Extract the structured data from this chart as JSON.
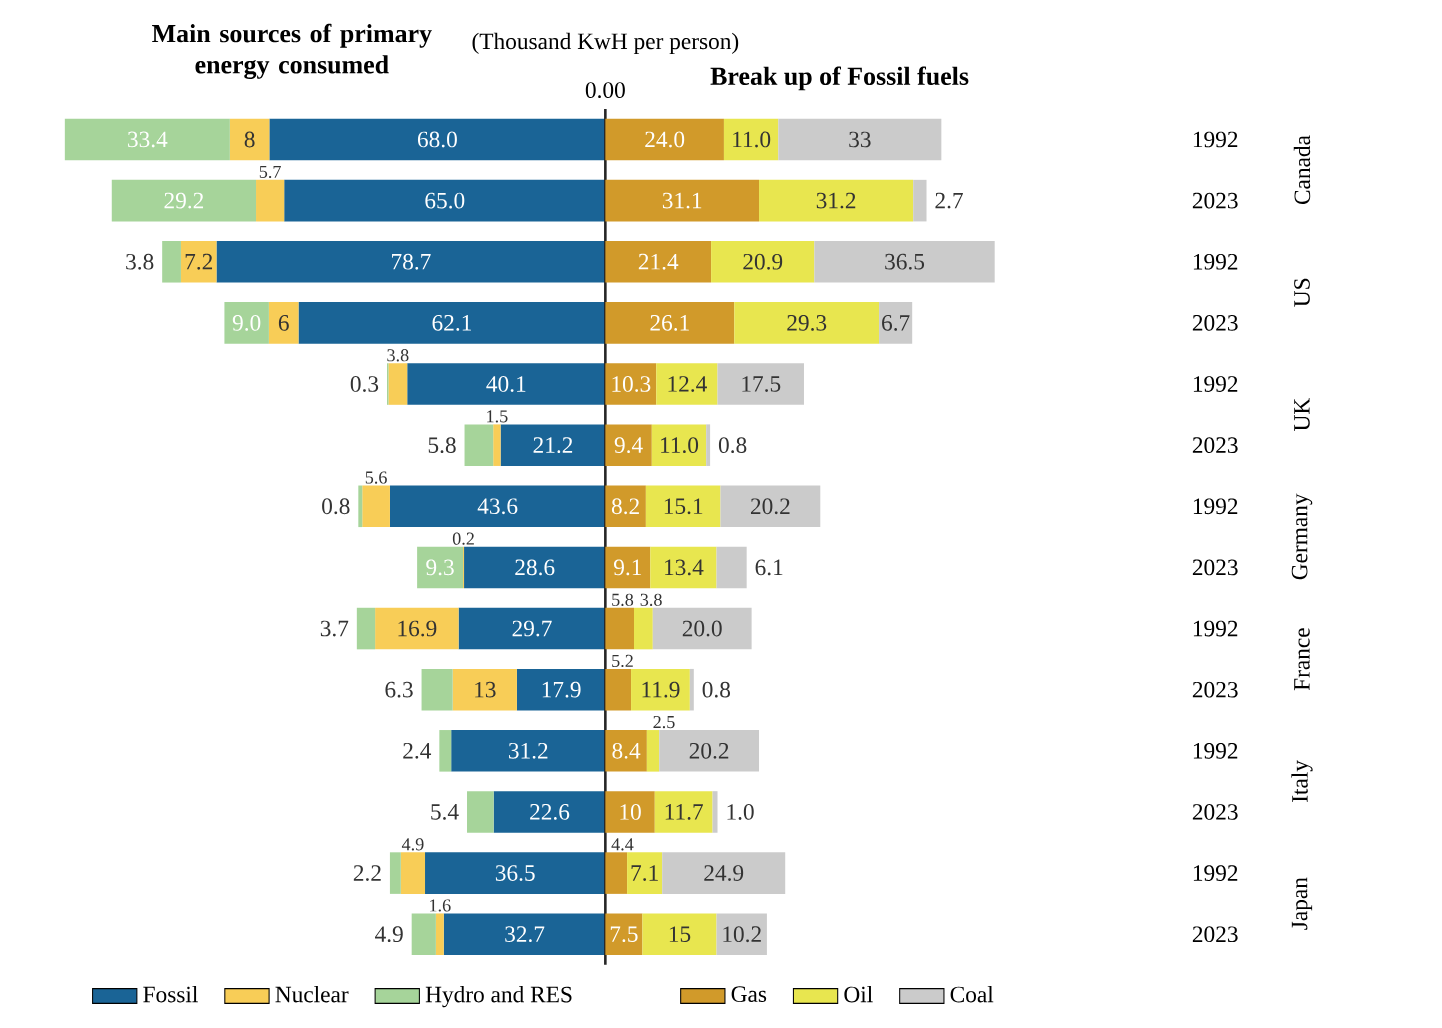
{
  "chart_data": [
    {
      "type": "bar",
      "orientation": "horizontal",
      "stacked": true,
      "title": "Main sources of primary energy consumed",
      "subtitle": "(Thousand KwH per person)",
      "categories": [
        "1992",
        "2023",
        "1992",
        "2023",
        "1992",
        "2023",
        "1992",
        "2023",
        "1992",
        "2023",
        "1992",
        "2023",
        "1992",
        "2023"
      ],
      "xlim": [
        109.4,
        0
      ],
      "annotations": [
        "0.00"
      ],
      "tick_labels": "x",
      "legend": "bottom",
      "series": [
        {
          "name": "Fossil",
          "color": "#1a6496",
          "values": [
            68.0,
            65.0,
            78.7,
            62.1,
            40.1,
            21.2,
            43.6,
            28.6,
            29.7,
            17.9,
            31.2,
            22.6,
            36.5,
            32.7
          ],
          "value_labels": [
            "68.0",
            "65.0",
            "78.7",
            "62.1",
            "40.1",
            "21.2",
            "43.6",
            "28.6",
            "29.7",
            "17.9",
            "31.2",
            "22.6",
            "36.5",
            "32.7"
          ]
        },
        {
          "name": "Nuclear",
          "color": "#f8cd57",
          "values": [
            8,
            5.7,
            7.2,
            6,
            3.8,
            1.5,
            5.6,
            0.2,
            16.9,
            13,
            null,
            null,
            4.9,
            1.6
          ],
          "value_labels": [
            "8",
            "5.7",
            "7.2",
            "6",
            "3.8",
            "1.5",
            "5.6",
            "0.2",
            "16.9",
            "13",
            null,
            null,
            "4.9",
            "1.6"
          ]
        },
        {
          "name": "Hydro and RES",
          "color": "#a6d49a",
          "values": [
            33.4,
            29.2,
            3.8,
            9.0,
            0.3,
            5.8,
            0.8,
            9.3,
            3.7,
            6.3,
            2.4,
            5.4,
            2.2,
            4.9
          ],
          "value_labels": [
            "33.4",
            "29.2",
            "3.8",
            "9.0",
            "0.3",
            "5.8",
            "0.8",
            "9.3",
            "3.7",
            "6.3",
            "2.4",
            "5.4",
            "2.2",
            "4.9"
          ]
        }
      ]
    },
    {
      "type": "bar",
      "orientation": "horizontal",
      "stacked": true,
      "title": "Break up of  Fossil fuels",
      "annotations": [
        "Canada",
        "US",
        "UK",
        "Germany",
        "France",
        "Italy",
        "Japan"
      ],
      "categories": [
        "1992",
        "2023",
        "1992",
        "2023",
        "1992",
        "2023",
        "1992",
        "2023",
        "1992",
        "2023",
        "1992",
        "2023",
        "1992",
        "2023"
      ],
      "tick_labels": "y",
      "legend": "bottom",
      "series": [
        {
          "name": "Gas",
          "color": "#d19a2a",
          "values": [
            24.0,
            31.1,
            21.4,
            26.1,
            10.3,
            9.4,
            8.2,
            9.1,
            5.8,
            5.2,
            8.4,
            10,
            4.4,
            7.5
          ],
          "value_labels": [
            "24.0",
            "31.1",
            "21.4",
            "26.1",
            "10.3",
            "9.4",
            "8.2",
            "9.1",
            "5.8",
            "5.2",
            "8.4",
            "10",
            "4.4",
            "7.5"
          ]
        },
        {
          "name": "Oil",
          "color": "#e8e64f",
          "values": [
            11.0,
            31.2,
            20.9,
            29.3,
            12.4,
            11.0,
            15.1,
            13.4,
            3.8,
            11.9,
            2.5,
            11.7,
            7.1,
            15
          ],
          "value_labels": [
            "11.0",
            "31.2",
            "20.9",
            "29.3",
            "12.4",
            "11.0",
            "15.1",
            "13.4",
            "3.8",
            "11.9",
            "2.5",
            "11.7",
            "7.1",
            "15"
          ]
        },
        {
          "name": "Coal",
          "color": "#cbcbcb",
          "values": [
            33,
            2.7,
            36.5,
            6.7,
            17.5,
            0.8,
            20.2,
            6.1,
            20.0,
            0.8,
            20.2,
            1.0,
            24.9,
            10.2
          ],
          "value_labels": [
            "33",
            "2.7",
            "36.5",
            "6.7",
            "17.5",
            "0.8",
            "20.2",
            "6.1",
            "20.0",
            "0.8",
            "20.2",
            "1.0",
            "24.9",
            "10.2"
          ]
        }
      ]
    }
  ]
}
